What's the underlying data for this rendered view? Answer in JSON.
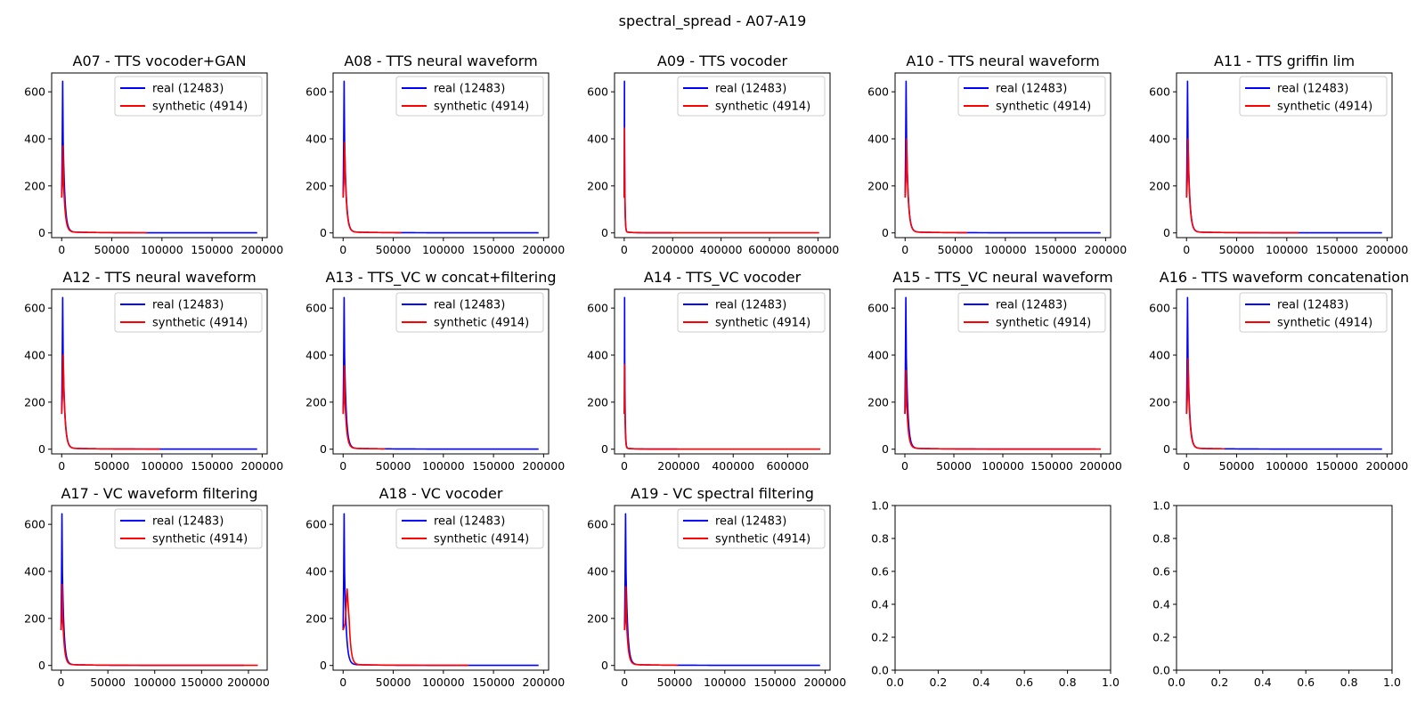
{
  "figure_title": "spectral_spread - A07-A19",
  "colors": {
    "real": "#0000ff",
    "synthetic": "#ff0000"
  },
  "chart_data": [
    {
      "type": "line",
      "title": "A07 - TTS vocoder+GAN",
      "xlim": [
        -10000,
        205000
      ],
      "ylim": [
        -20,
        680
      ],
      "xticks": [
        0,
        50000,
        100000,
        150000,
        200000
      ],
      "yticks": [
        0,
        200,
        400,
        600
      ],
      "legend": "top-right",
      "grid": false,
      "series": [
        {
          "name": "real (12483)",
          "color": "#0000ff",
          "peak_x": 1000,
          "peak_y": 645,
          "x_max": 195000
        },
        {
          "name": "synthetic (4914)",
          "color": "#ff0000",
          "peak_x": 1200,
          "peak_y": 370,
          "x_max": 85000
        }
      ]
    },
    {
      "type": "line",
      "title": "A08 - TTS neural waveform",
      "xlim": [
        -10000,
        205000
      ],
      "ylim": [
        -20,
        680
      ],
      "xticks": [
        0,
        50000,
        100000,
        150000,
        200000
      ],
      "yticks": [
        0,
        200,
        400,
        600
      ],
      "legend": "top-right",
      "grid": false,
      "series": [
        {
          "name": "real (12483)",
          "color": "#0000ff",
          "peak_x": 1000,
          "peak_y": 645,
          "x_max": 195000
        },
        {
          "name": "synthetic (4914)",
          "color": "#ff0000",
          "peak_x": 1500,
          "peak_y": 385,
          "x_max": 58000
        }
      ]
    },
    {
      "type": "line",
      "title": "A09 - TTS vocoder",
      "xlim": [
        -40000,
        850000
      ],
      "ylim": [
        -20,
        680
      ],
      "xticks": [
        0,
        200000,
        400000,
        600000,
        800000
      ],
      "yticks": [
        0,
        200,
        400,
        600
      ],
      "legend": "top-right",
      "grid": false,
      "series": [
        {
          "name": "real (12483)",
          "color": "#0000ff",
          "peak_x": 1000,
          "peak_y": 645,
          "x_max": 195000
        },
        {
          "name": "synthetic (4914)",
          "color": "#ff0000",
          "peak_x": 1200,
          "peak_y": 445,
          "x_max": 805000
        }
      ]
    },
    {
      "type": "line",
      "title": "A10 - TTS neural waveform",
      "xlim": [
        -10000,
        205000
      ],
      "ylim": [
        -20,
        680
      ],
      "xticks": [
        0,
        50000,
        100000,
        150000,
        200000
      ],
      "yticks": [
        0,
        200,
        400,
        600
      ],
      "legend": "top-right",
      "grid": false,
      "series": [
        {
          "name": "real (12483)",
          "color": "#0000ff",
          "peak_x": 1000,
          "peak_y": 645,
          "x_max": 195000
        },
        {
          "name": "synthetic (4914)",
          "color": "#ff0000",
          "peak_x": 1500,
          "peak_y": 400,
          "x_max": 62000
        }
      ]
    },
    {
      "type": "line",
      "title": "A11 - TTS griffin lim",
      "xlim": [
        -10000,
        205000
      ],
      "ylim": [
        -20,
        680
      ],
      "xticks": [
        0,
        50000,
        100000,
        150000,
        200000
      ],
      "yticks": [
        0,
        200,
        400,
        600
      ],
      "legend": "top-right",
      "grid": false,
      "series": [
        {
          "name": "real (12483)",
          "color": "#0000ff",
          "peak_x": 1000,
          "peak_y": 645,
          "x_max": 195000
        },
        {
          "name": "synthetic (4914)",
          "color": "#ff0000",
          "peak_x": 1500,
          "peak_y": 400,
          "x_max": 112000
        }
      ]
    },
    {
      "type": "line",
      "title": "A12 - TTS neural waveform",
      "xlim": [
        -10000,
        205000
      ],
      "ylim": [
        -20,
        680
      ],
      "xticks": [
        0,
        50000,
        100000,
        150000,
        200000
      ],
      "yticks": [
        0,
        200,
        400,
        600
      ],
      "legend": "top-right",
      "grid": false,
      "series": [
        {
          "name": "real (12483)",
          "color": "#0000ff",
          "peak_x": 1000,
          "peak_y": 645,
          "x_max": 195000
        },
        {
          "name": "synthetic (4914)",
          "color": "#ff0000",
          "peak_x": 1500,
          "peak_y": 400,
          "x_max": 98000
        }
      ]
    },
    {
      "type": "line",
      "title": "A13 - TTS_VC w concat+filtering",
      "xlim": [
        -10000,
        205000
      ],
      "ylim": [
        -20,
        680
      ],
      "xticks": [
        0,
        50000,
        100000,
        150000,
        200000
      ],
      "yticks": [
        0,
        200,
        400,
        600
      ],
      "legend": "top-right",
      "grid": false,
      "series": [
        {
          "name": "real (12483)",
          "color": "#0000ff",
          "peak_x": 1000,
          "peak_y": 645,
          "x_max": 195000
        },
        {
          "name": "synthetic (4914)",
          "color": "#ff0000",
          "peak_x": 1200,
          "peak_y": 355,
          "x_max": 42000
        }
      ]
    },
    {
      "type": "line",
      "title": "A14 - TTS_VC vocoder",
      "xlim": [
        -36000,
        756000
      ],
      "ylim": [
        -20,
        680
      ],
      "xticks": [
        0,
        200000,
        400000,
        600000
      ],
      "yticks": [
        0,
        200,
        400,
        600
      ],
      "legend": "top-right",
      "grid": false,
      "series": [
        {
          "name": "real (12483)",
          "color": "#0000ff",
          "peak_x": 1000,
          "peak_y": 645,
          "x_max": 195000
        },
        {
          "name": "synthetic (4914)",
          "color": "#ff0000",
          "peak_x": 1200,
          "peak_y": 360,
          "x_max": 720000
        }
      ]
    },
    {
      "type": "line",
      "title": "A15 - TTS_VC neural waveform",
      "xlim": [
        -10000,
        210000
      ],
      "ylim": [
        -20,
        680
      ],
      "xticks": [
        0,
        50000,
        100000,
        150000,
        200000
      ],
      "yticks": [
        0,
        200,
        400,
        600
      ],
      "legend": "top-right",
      "grid": false,
      "series": [
        {
          "name": "real (12483)",
          "color": "#0000ff",
          "peak_x": 1000,
          "peak_y": 645,
          "x_max": 195000
        },
        {
          "name": "synthetic (4914)",
          "color": "#ff0000",
          "peak_x": 1200,
          "peak_y": 335,
          "x_max": 200000
        }
      ]
    },
    {
      "type": "line",
      "title": "A16 - TTS waveform concatenation",
      "xlim": [
        -10000,
        205000
      ],
      "ylim": [
        -20,
        680
      ],
      "xticks": [
        0,
        50000,
        100000,
        150000,
        200000
      ],
      "yticks": [
        0,
        200,
        400,
        600
      ],
      "legend": "top-right",
      "grid": false,
      "series": [
        {
          "name": "real (12483)",
          "color": "#0000ff",
          "peak_x": 1000,
          "peak_y": 645,
          "x_max": 195000
        },
        {
          "name": "synthetic (4914)",
          "color": "#ff0000",
          "peak_x": 1500,
          "peak_y": 385,
          "x_max": 38000
        }
      ]
    },
    {
      "type": "line",
      "title": "A17 - VC waveform filtering",
      "xlim": [
        -10000,
        220000
      ],
      "ylim": [
        -20,
        680
      ],
      "xticks": [
        0,
        50000,
        100000,
        150000,
        200000
      ],
      "yticks": [
        0,
        200,
        400,
        600
      ],
      "legend": "top-right",
      "grid": false,
      "series": [
        {
          "name": "real (12483)",
          "color": "#0000ff",
          "peak_x": 1000,
          "peak_y": 645,
          "x_max": 195000
        },
        {
          "name": "synthetic (4914)",
          "color": "#ff0000",
          "peak_x": 1200,
          "peak_y": 345,
          "x_max": 210000
        }
      ]
    },
    {
      "type": "line",
      "title": "A18 - VC vocoder",
      "xlim": [
        -10000,
        205000
      ],
      "ylim": [
        -20,
        680
      ],
      "xticks": [
        0,
        50000,
        100000,
        150000,
        200000
      ],
      "yticks": [
        0,
        200,
        400,
        600
      ],
      "legend": "top-right",
      "grid": false,
      "series": [
        {
          "name": "real (12483)",
          "color": "#0000ff",
          "peak_x": 1000,
          "peak_y": 645,
          "x_max": 195000
        },
        {
          "name": "synthetic (4914)",
          "color": "#ff0000",
          "peak_x": 4000,
          "peak_y": 325,
          "x_max": 125000
        }
      ]
    },
    {
      "type": "line",
      "title": "A19 - VC spectral filtering",
      "xlim": [
        -10000,
        205000
      ],
      "ylim": [
        -20,
        680
      ],
      "xticks": [
        0,
        50000,
        100000,
        150000,
        200000
      ],
      "yticks": [
        0,
        200,
        400,
        600
      ],
      "legend": "top-right",
      "grid": false,
      "series": [
        {
          "name": "real (12483)",
          "color": "#0000ff",
          "peak_x": 1000,
          "peak_y": 645,
          "x_max": 195000
        },
        {
          "name": "synthetic (4914)",
          "color": "#ff0000",
          "peak_x": 1200,
          "peak_y": 335,
          "x_max": 53000
        }
      ]
    },
    {
      "type": "line",
      "title": "",
      "xlim": [
        0,
        1
      ],
      "ylim": [
        0,
        1
      ],
      "xticks": [
        0.0,
        0.2,
        0.4,
        0.6,
        0.8,
        1.0
      ],
      "yticks": [
        0.0,
        0.2,
        0.4,
        0.6,
        0.8,
        1.0
      ],
      "tick_format": "1dp",
      "series": []
    },
    {
      "type": "line",
      "title": "",
      "xlim": [
        0,
        1
      ],
      "ylim": [
        0,
        1
      ],
      "xticks": [
        0.0,
        0.2,
        0.4,
        0.6,
        0.8,
        1.0
      ],
      "yticks": [
        0.0,
        0.2,
        0.4,
        0.6,
        0.8,
        1.0
      ],
      "tick_format": "1dp",
      "series": []
    }
  ]
}
